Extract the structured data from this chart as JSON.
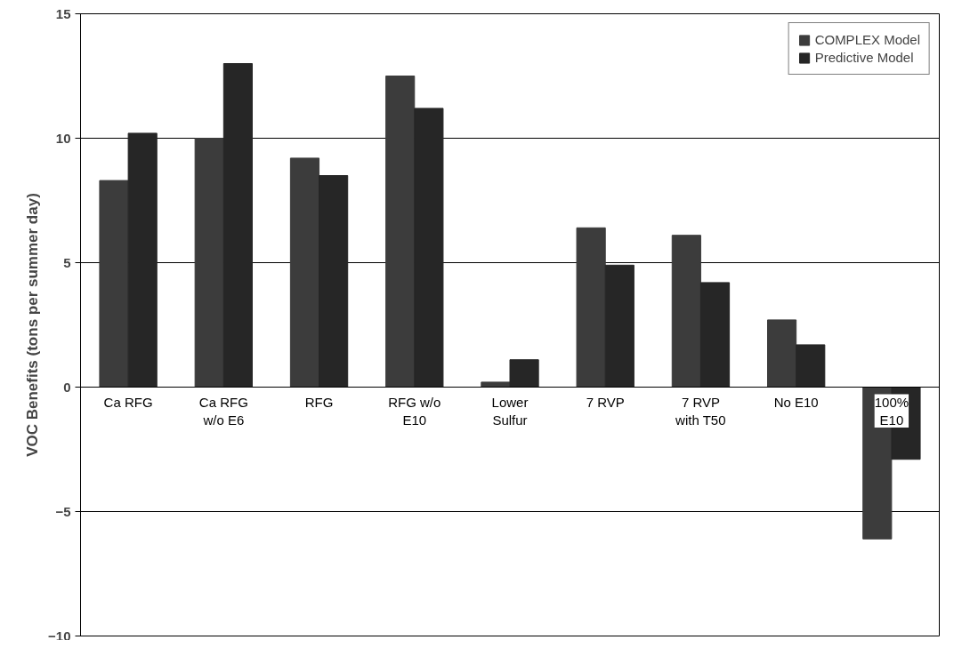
{
  "chart_data": {
    "type": "bar",
    "ylabel": "VOC Benefits (tons per summer day)",
    "categories": [
      "Ca RFG",
      "Ca RFG\nw/o E6",
      "RFG",
      "RFG w/o\nE10",
      "Lower\nSulfur",
      "7 RVP",
      "7 RVP\nwith T50",
      "No E10",
      "100%\nE10"
    ],
    "series": [
      {
        "name": "COMPLEX Model",
        "color": "#3c3c3c",
        "values": [
          8.3,
          10.0,
          9.2,
          12.5,
          0.2,
          6.4,
          6.1,
          2.7,
          -6.1
        ]
      },
      {
        "name": "Predictive Model",
        "color": "#262626",
        "values": [
          10.2,
          13.0,
          8.5,
          11.2,
          1.1,
          4.9,
          4.2,
          1.7,
          -2.9
        ]
      }
    ],
    "ylim": [
      -10,
      15
    ],
    "yticks": [
      -10,
      -5,
      0,
      5,
      10,
      15
    ],
    "grid": "y",
    "legend": "top right"
  }
}
